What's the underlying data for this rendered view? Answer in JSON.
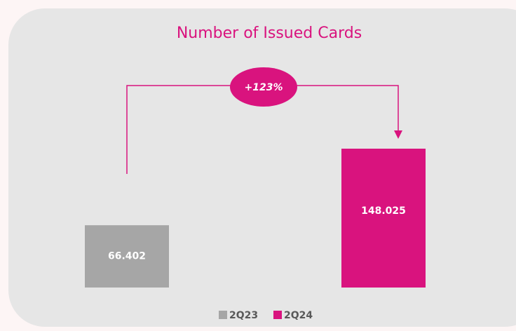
{
  "chart_data": {
    "type": "bar",
    "title": "Number of Issued Cards",
    "annotation": "+123%",
    "series": [
      {
        "name": "2Q23",
        "color": "#a6a6a6",
        "values": [
          66402
        ],
        "value_labels": [
          "66.402"
        ]
      },
      {
        "name": "2Q24",
        "color": "#d9137e",
        "values": [
          148025
        ],
        "value_labels": [
          "148.025"
        ]
      }
    ]
  }
}
